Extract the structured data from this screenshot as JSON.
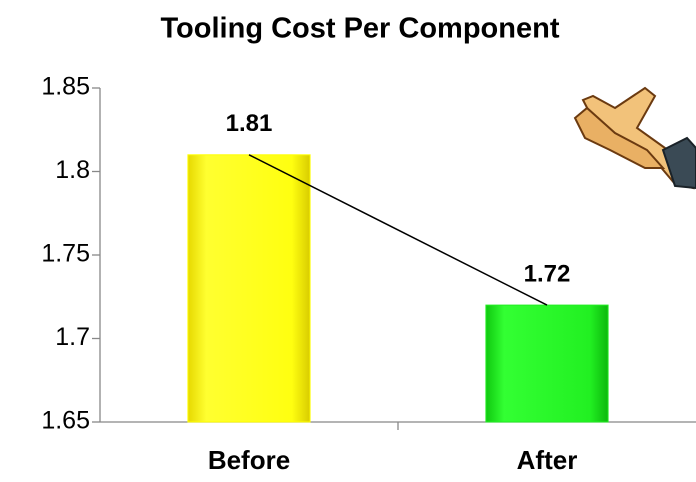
{
  "chart_data": {
    "type": "bar",
    "title": "Tooling Cost Per Component",
    "categories": [
      "Before",
      "After"
    ],
    "values": [
      1.81,
      1.72
    ],
    "colors": [
      "#ffff00",
      "#22ee22"
    ],
    "ylim": [
      1.65,
      1.85
    ],
    "yticks": [
      1.65,
      1.7,
      1.75,
      1.8,
      1.85
    ],
    "grid": false,
    "trend_line": true
  }
}
